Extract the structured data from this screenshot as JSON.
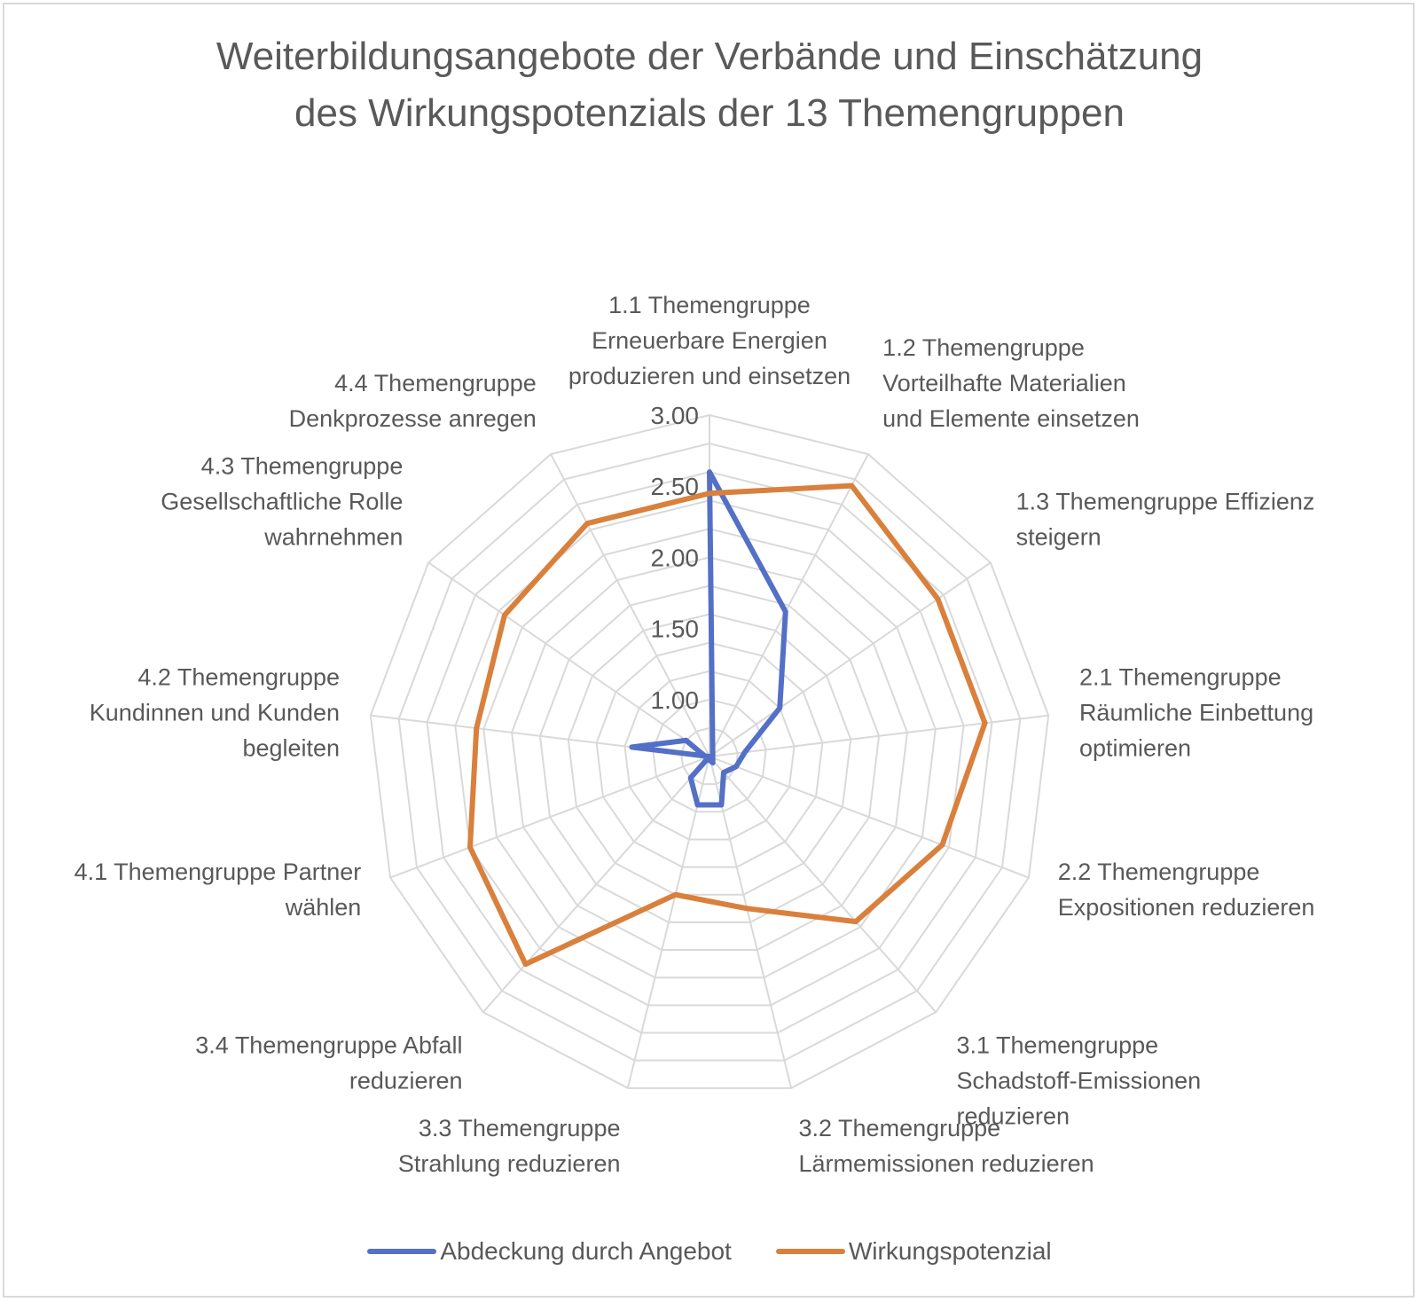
{
  "chart_data": {
    "type": "radar",
    "title_lines": [
      "Weiterbildungsangebote der Verbände und Einschätzung",
      "des Wirkungspotenzials der 13 Themengruppen"
    ],
    "categories": [
      [
        "1.1 Themengruppe",
        "Erneuerbare Energien",
        "produzieren und einsetzen"
      ],
      [
        "1.2 Themengruppe",
        "Vorteilhafte Materialien",
        "und Elemente einsetzen"
      ],
      [
        "1.3 Themengruppe Effizienz",
        "steigern"
      ],
      [
        "2.1 Themengruppe",
        "Räumliche Einbettung",
        "optimieren"
      ],
      [
        "2.2 Themengruppe",
        "Expositionen reduzieren"
      ],
      [
        "3.1 Themengruppe",
        "Schadstoff-Emissionen",
        "reduzieren"
      ],
      [
        "3.2 Themengruppe",
        "Lärmemissionen reduzieren"
      ],
      [
        "3.3 Themengruppe",
        "Strahlung reduzieren"
      ],
      [
        "3.4 Themengruppe Abfall",
        "reduzieren"
      ],
      [
        "4.1 Themengruppe Partner",
        "wählen"
      ],
      [
        "4.2 Themengruppe",
        "Kundinnen und Kunden",
        "begleiten"
      ],
      [
        "4.3 Themengruppe",
        "Gesellschaftliche Rolle",
        "wahrnehmen"
      ],
      [
        "4.4 Themengruppe",
        "Denkprozesse anregen"
      ]
    ],
    "axis": {
      "min": 0.6,
      "max": 3.0,
      "ticks": [
        "1.00",
        "1.50",
        "2.00",
        "2.50",
        "3.00"
      ],
      "tick_values": [
        1.0,
        1.5,
        2.0,
        2.5,
        3.0
      ],
      "gridlines": true
    },
    "series": [
      {
        "name": "Abdeckung durch Angebot",
        "color": "#5470c6",
        "values": [
          2.6,
          1.75,
          1.2,
          0.85,
          0.8,
          0.75,
          0.95,
          0.95,
          0.8,
          0.6,
          1.15,
          0.8,
          0.55
        ]
      },
      {
        "name": "Wirkungspotenzial",
        "color": "#d9803c",
        "values": [
          2.45,
          2.75,
          2.55,
          2.55,
          2.35,
          2.15,
          1.7,
          1.6,
          2.55,
          2.4,
          2.25,
          2.35,
          2.45
        ]
      }
    ],
    "legend": {
      "position": "bottom"
    }
  }
}
